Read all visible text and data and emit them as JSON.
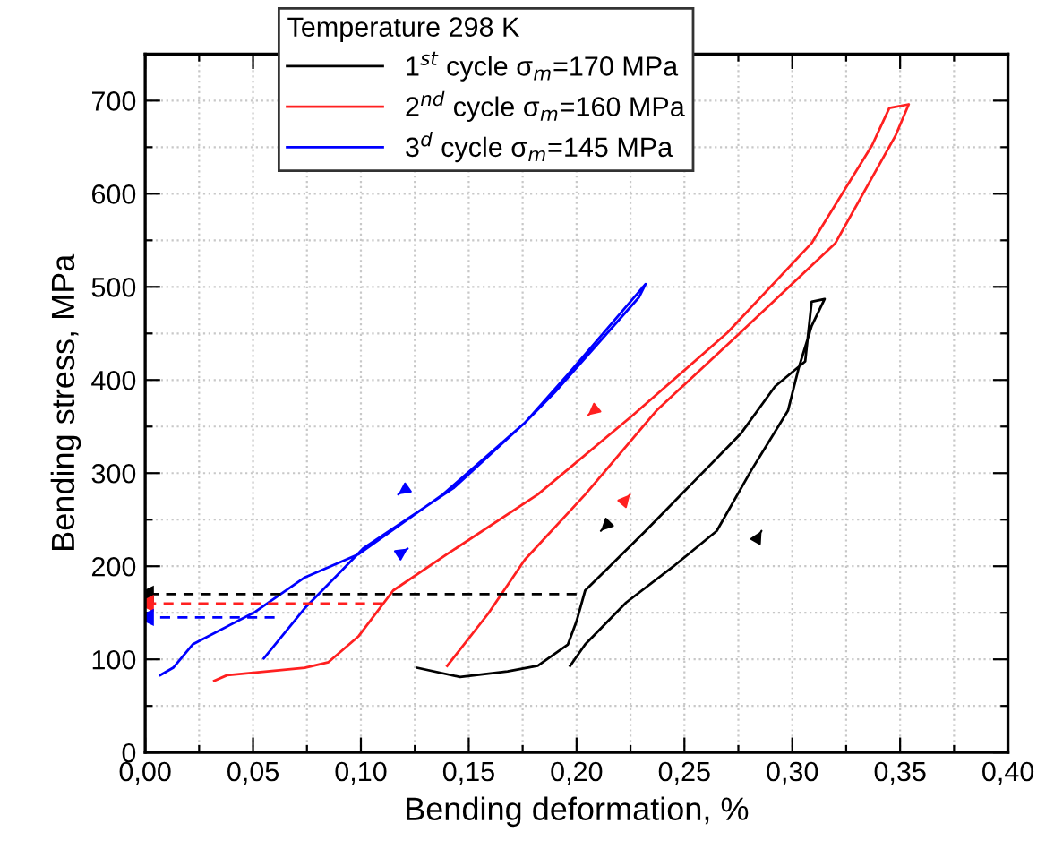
{
  "chart_data": {
    "type": "line",
    "xlabel": "Bending deformation, %",
    "ylabel": "Bending stress, MPa",
    "legend_title": "Temperature 298 K",
    "legend": "top",
    "grid": true,
    "xlim": [
      0,
      0.4
    ],
    "ylim": [
      0,
      750
    ],
    "xticks": [
      {
        "value": 0,
        "label": "0,00"
      },
      {
        "value": 0.025,
        "label": null
      },
      {
        "value": 0.05,
        "label": "0,05"
      },
      {
        "value": 0.075,
        "label": null
      },
      {
        "value": 0.1,
        "label": "0,10"
      },
      {
        "value": 0.125,
        "label": null
      },
      {
        "value": 0.15,
        "label": "0,15"
      },
      {
        "value": 0.175,
        "label": null
      },
      {
        "value": 0.2,
        "label": "0,20"
      },
      {
        "value": 0.225,
        "label": null
      },
      {
        "value": 0.25,
        "label": "0,25"
      },
      {
        "value": 0.275,
        "label": null
      },
      {
        "value": 0.3,
        "label": "0,30"
      },
      {
        "value": 0.325,
        "label": null
      },
      {
        "value": 0.35,
        "label": "0,35"
      },
      {
        "value": 0.375,
        "label": null
      },
      {
        "value": 0.4,
        "label": "0,40"
      }
    ],
    "yticks": [
      0,
      {
        "value": 50,
        "label": null
      },
      100,
      {
        "value": 150,
        "label": null
      },
      200,
      {
        "value": 250,
        "label": null
      },
      300,
      {
        "value": 350,
        "label": null
      },
      400,
      {
        "value": 450,
        "label": null
      },
      500,
      {
        "value": 550,
        "label": null
      },
      600,
      {
        "value": 650,
        "label": null
      },
      700
    ],
    "series": [
      {
        "name": "1$^{st}$ cycle σ$_{m}$=170 MPa",
        "color": "#000000",
        "x": [
          0.197,
          0.204,
          0.223,
          0.245,
          0.265,
          0.281,
          0.298,
          0.303,
          0.309,
          0.315,
          0.309,
          0.306,
          0.292,
          0.276,
          0.254,
          0.232,
          0.215,
          0.204,
          0.2,
          0.196,
          0.182,
          0.168,
          0.146,
          0.126
        ],
        "values": [
          93,
          116,
          161,
          200,
          238,
          303,
          367,
          413,
          458,
          487,
          484,
          420,
          393,
          342,
          290,
          238,
          199,
          174,
          141,
          116,
          93,
          87,
          81,
          91
        ]
      },
      {
        "name": "2$^{nd}$ cycle σ$_{m}$=160 MPa",
        "color": "#ff2020",
        "x": [
          0.14,
          0.159,
          0.176,
          0.204,
          0.237,
          0.276,
          0.32,
          0.348,
          0.354,
          0.345,
          0.337,
          0.309,
          0.27,
          0.226,
          0.182,
          0.14,
          0.115,
          0.099,
          0.085,
          0.074,
          0.038,
          0.032
        ],
        "values": [
          93,
          149,
          207,
          277,
          367,
          451,
          547,
          663,
          696,
          692,
          652,
          547,
          451,
          362,
          277,
          213,
          174,
          125,
          97,
          91,
          83,
          77
        ]
      },
      {
        "name": "3$^{d}$ cycle σ$_{m}$=145 MPa",
        "color": "#0000ff",
        "x": [
          0.055,
          0.074,
          0.088,
          0.101,
          0.143,
          0.176,
          0.196,
          0.232,
          0.229,
          0.19,
          0.176,
          0.138,
          0.099,
          0.074,
          0.051,
          0.022,
          0.013,
          0.007
        ],
        "values": [
          101,
          155,
          188,
          219,
          284,
          354,
          406,
          503,
          489,
          387,
          354,
          277,
          213,
          188,
          151,
          116,
          91,
          83
        ]
      },
      {
        "color": "#000000",
        "line_style": "dashed",
        "marker": "triangle",
        "x": [
          0.2,
          0
        ],
        "values": [
          170,
          170
        ]
      },
      {
        "color": "#ff2020",
        "line_style": "dashed",
        "marker": "triangle",
        "x": [
          0.11,
          0
        ],
        "values": [
          160,
          160
        ]
      },
      {
        "color": "#0000ff",
        "line_style": "dashed",
        "marker": "triangle",
        "x": [
          0.06,
          0
        ],
        "values": [
          145,
          145
        ]
      }
    ]
  }
}
